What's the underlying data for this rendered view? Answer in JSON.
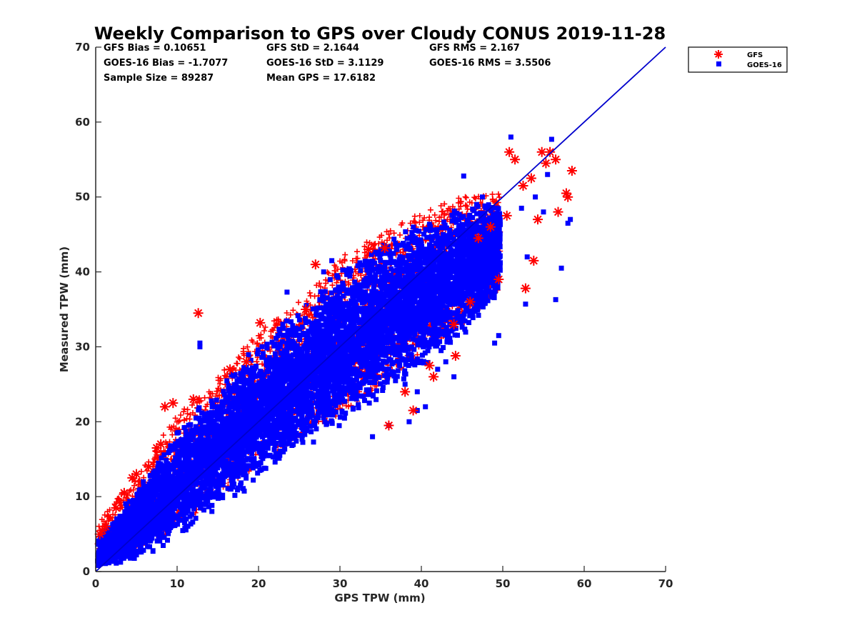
{
  "chart_data": {
    "type": "scatter",
    "title": "Weekly Comparison to GPS over Cloudy CONUS 2019-11-28",
    "xlabel": "GPS TPW (mm)",
    "ylabel": "Measured TPW (mm)",
    "xlim": [
      0,
      70
    ],
    "ylim": [
      0,
      70
    ],
    "xticks": [
      "0",
      "10",
      "20",
      "30",
      "40",
      "50",
      "60",
      "70"
    ],
    "yticks": [
      "0",
      "10",
      "20",
      "30",
      "40",
      "50",
      "60",
      "70"
    ],
    "grid": false,
    "legend_position": "outside-top-right",
    "stats": [
      "GFS Bias = 0.10651",
      "GFS StD = 2.1644",
      "GFS RMS = 2.167",
      "GOES-16 Bias = -1.7077",
      "GOES-16 StD = 3.1129",
      "GOES-16 RMS = 3.5506",
      "Sample Size = 89287",
      "Mean GPS = 17.6182"
    ],
    "reference_line": {
      "x": [
        0,
        70
      ],
      "y": [
        0,
        70
      ],
      "color": "#0000cc"
    },
    "series": [
      {
        "name": "GFS",
        "marker": "asterisk",
        "color": "#ff0000",
        "band": [
          [
            0,
            1.5,
            6
          ],
          [
            5,
            2.5,
            13
          ],
          [
            10,
            6,
            21
          ],
          [
            15,
            10,
            26
          ],
          [
            20,
            14,
            32
          ],
          [
            25,
            18,
            36
          ],
          [
            30,
            21,
            42
          ],
          [
            35,
            25,
            45
          ],
          [
            40,
            29,
            48
          ],
          [
            45,
            33,
            50
          ],
          [
            50,
            38,
            51
          ]
        ],
        "x": [
          0.5,
          0.8,
          1.2,
          2.5,
          3.5,
          4.5,
          5.0,
          6.5,
          7.5,
          8.0,
          8.5,
          9.5,
          12.0,
          12.6,
          16.5,
          18.5,
          20.2,
          25.8,
          27.0,
          33.5,
          35.5,
          39.0,
          41.5,
          44.2,
          46.0,
          47.0,
          48.5,
          49.5,
          50.5,
          50.8,
          51.5,
          52.5,
          52.8,
          53.5,
          53.8,
          54.3,
          54.8,
          55.3,
          55.8,
          56.5,
          56.8,
          57.8,
          58.0,
          58.5,
          36.0,
          38.0,
          41.0,
          44.0
        ],
        "y": [
          5.0,
          5.5,
          6.0,
          8.5,
          10.5,
          12.5,
          13.0,
          14.0,
          16.5,
          17.0,
          22.0,
          22.5,
          23.0,
          34.5,
          27.0,
          28.0,
          33.2,
          35.0,
          41.0,
          43.0,
          43.2,
          21.5,
          26.0,
          28.8,
          36.0,
          44.5,
          46.0,
          39.0,
          47.5,
          56.0,
          55.0,
          51.5,
          37.8,
          52.5,
          41.5,
          47.0,
          56.0,
          54.5,
          56.0,
          55.0,
          48.0,
          50.5,
          50.0,
          53.5,
          19.5,
          24.0,
          27.5,
          33.0
        ]
      },
      {
        "name": "GOES-16",
        "marker": "square",
        "color": "#0000ff",
        "band": [
          [
            0,
            0.5,
            4
          ],
          [
            5,
            1.5,
            11
          ],
          [
            10,
            4,
            19
          ],
          [
            15,
            8,
            25
          ],
          [
            20,
            12,
            31
          ],
          [
            25,
            16,
            35
          ],
          [
            30,
            19,
            41
          ],
          [
            35,
            23,
            44
          ],
          [
            40,
            27,
            47
          ],
          [
            45,
            31,
            49
          ],
          [
            50,
            37,
            50
          ]
        ],
        "x": [
          12.8,
          12.8,
          23.5,
          28.0,
          29.0,
          35.0,
          38.0,
          39.5,
          43.0,
          45.2,
          47.5,
          49.0,
          51.0,
          52.8,
          53.0,
          54.0,
          55.0,
          55.5,
          56.0,
          56.5,
          57.2,
          58.0,
          58.3,
          49.5,
          52.3,
          46.8,
          44.0,
          42.0,
          40.5,
          39.5,
          38.5,
          36.0,
          34.0
        ],
        "y": [
          30.0,
          30.5,
          37.3,
          40.0,
          41.5,
          43.0,
          25.0,
          24.0,
          28.0,
          52.8,
          50.0,
          30.5,
          58.0,
          35.7,
          42.0,
          50.0,
          48.0,
          53.0,
          57.7,
          36.3,
          40.5,
          46.5,
          47.0,
          31.5,
          48.5,
          49.0,
          26.0,
          27.0,
          22.0,
          21.5,
          20.0,
          19.5,
          18.0
        ]
      }
    ]
  }
}
